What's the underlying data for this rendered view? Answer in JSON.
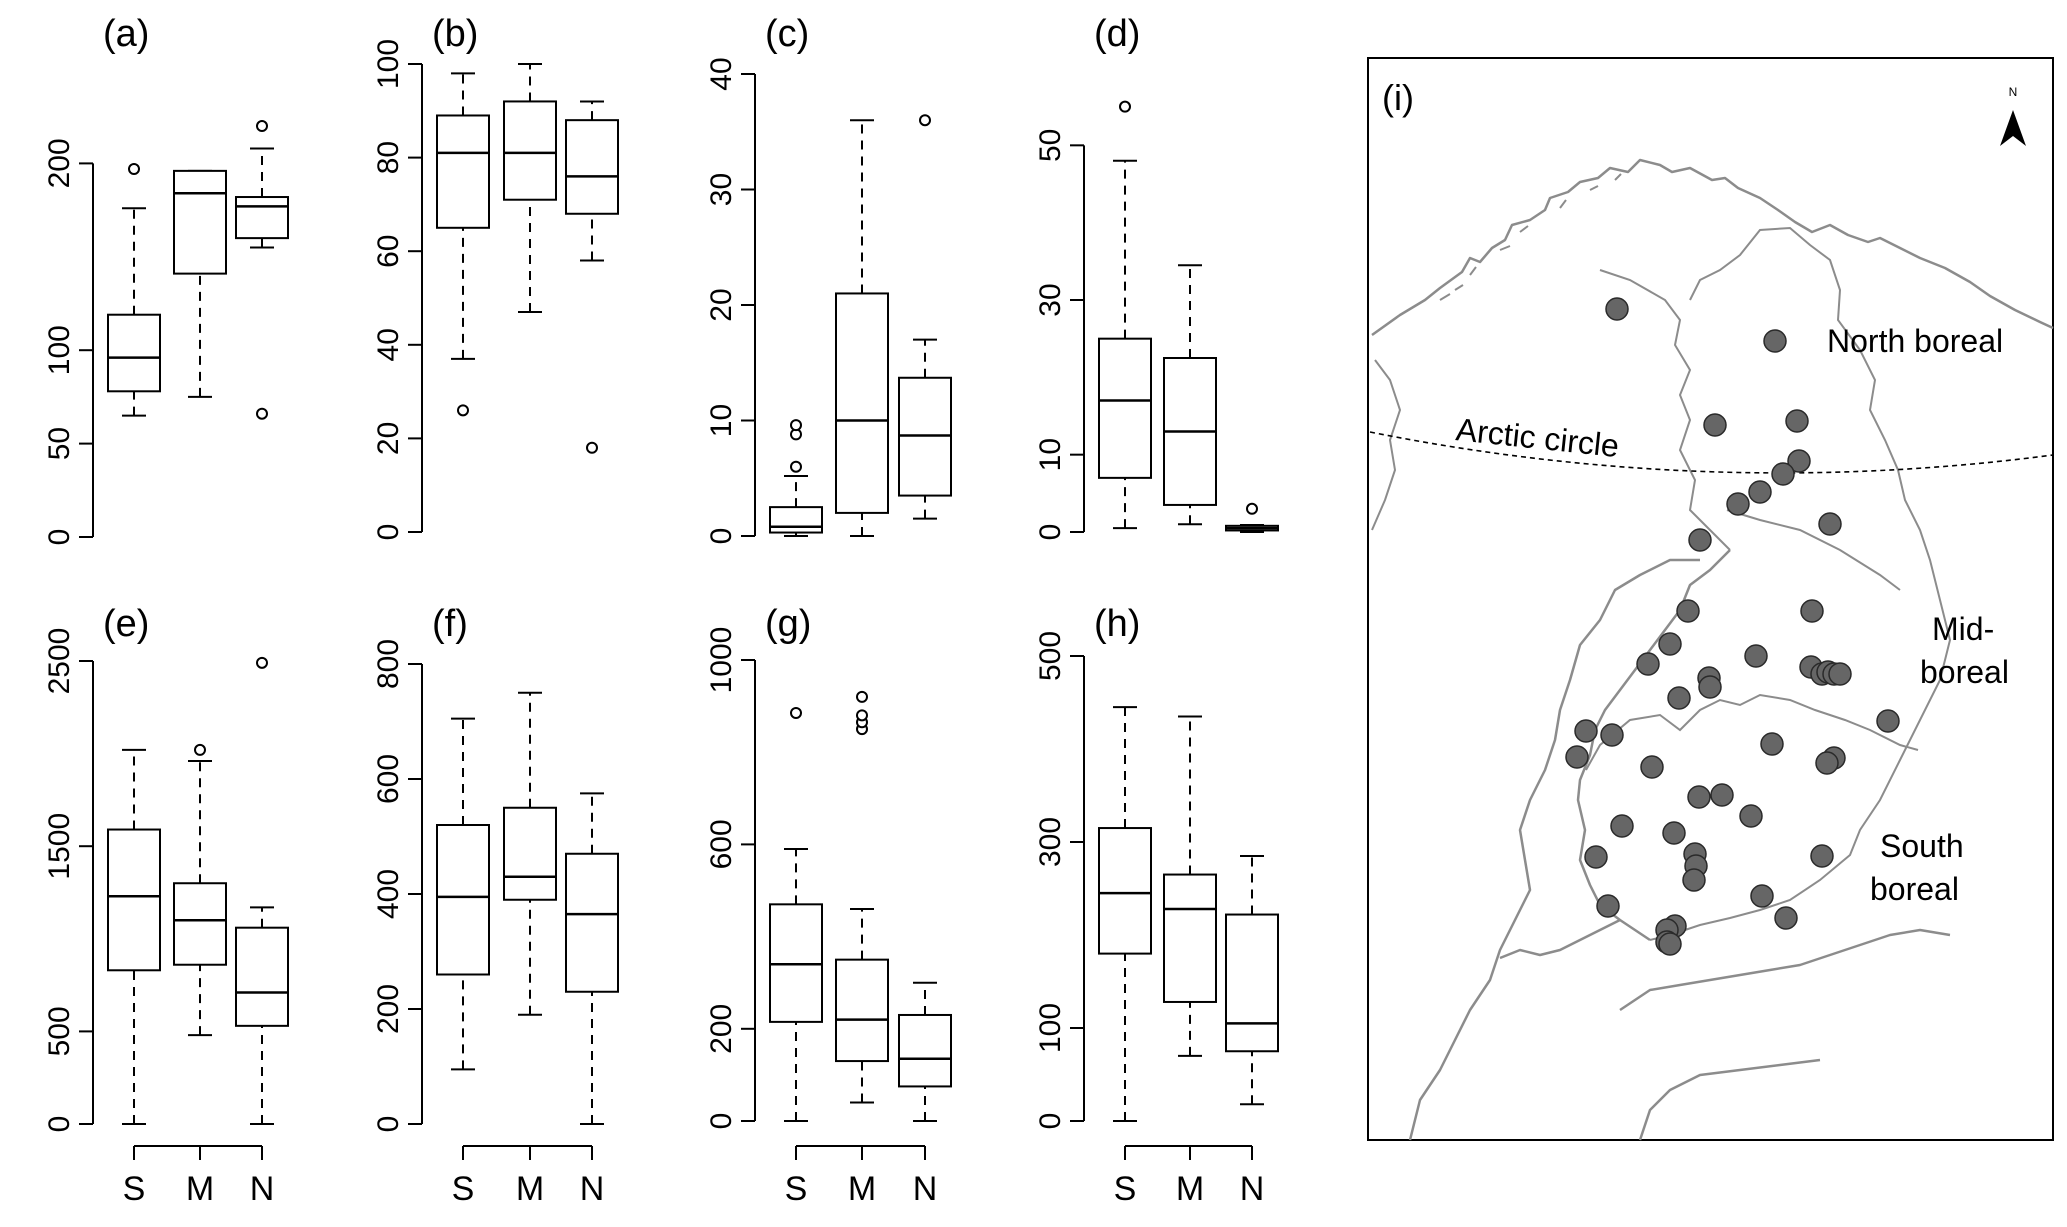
{
  "chart_data": [
    {
      "type": "box",
      "panel_label": "(a)",
      "categories": [
        "S",
        "M",
        "N"
      ],
      "ylim": [
        0,
        250
      ],
      "yticks": [
        0,
        50,
        100,
        200
      ],
      "boxes": [
        {
          "whisker_low": 65,
          "q1": 78,
          "median": 96,
          "q3": 119,
          "whisker_high": 176,
          "outliers": [
            197
          ]
        },
        {
          "whisker_low": 75,
          "q1": 141,
          "median": 184,
          "q3": 196,
          "whisker_high": 196,
          "outliers": []
        },
        {
          "whisker_low": 155,
          "q1": 160,
          "median": 177,
          "q3": 182,
          "whisker_high": 208,
          "outliers": [
            66,
            220
          ]
        }
      ]
    },
    {
      "type": "box",
      "panel_label": "(b)",
      "categories": [
        "S",
        "M",
        "N"
      ],
      "ylim": [
        0,
        100
      ],
      "yticks": [
        0,
        20,
        40,
        60,
        80,
        100
      ],
      "boxes": [
        {
          "whisker_low": 37,
          "q1": 65,
          "median": 81,
          "q3": 89,
          "whisker_high": 98,
          "outliers": [
            26
          ]
        },
        {
          "whisker_low": 47,
          "q1": 71,
          "median": 81,
          "q3": 92,
          "whisker_high": 100,
          "outliers": []
        },
        {
          "whisker_low": 58,
          "q1": 68,
          "median": 76,
          "q3": 88,
          "whisker_high": 92,
          "outliers": [
            18
          ]
        }
      ]
    },
    {
      "type": "box",
      "panel_label": "(c)",
      "categories": [
        "S",
        "M",
        "N"
      ],
      "ylim": [
        0,
        40
      ],
      "yticks": [
        0,
        10,
        20,
        30,
        40
      ],
      "boxes": [
        {
          "whisker_low": 0,
          "q1": 0.3,
          "median": 0.8,
          "q3": 2.5,
          "whisker_high": 5.2,
          "outliers": [
            6,
            8.8,
            9.6
          ]
        },
        {
          "whisker_low": 0,
          "q1": 2,
          "median": 10,
          "q3": 21,
          "whisker_high": 36,
          "outliers": []
        },
        {
          "whisker_low": 1.5,
          "q1": 3.5,
          "median": 8.7,
          "q3": 13.7,
          "whisker_high": 17,
          "outliers": [
            36
          ]
        }
      ]
    },
    {
      "type": "box",
      "panel_label": "(d)",
      "categories": [
        "S",
        "M",
        "N"
      ],
      "ylim": [
        0,
        60
      ],
      "yticks": [
        0,
        10,
        30,
        50
      ],
      "boxes": [
        {
          "whisker_low": 0.5,
          "q1": 7,
          "median": 17,
          "q3": 25,
          "whisker_high": 48,
          "outliers": [
            55
          ]
        },
        {
          "whisker_low": 1,
          "q1": 3.5,
          "median": 13,
          "q3": 22.5,
          "whisker_high": 34.5,
          "outliers": []
        },
        {
          "whisker_low": 0,
          "q1": 0.2,
          "median": 0.5,
          "q3": 0.8,
          "whisker_high": 0.9,
          "outliers": [
            3
          ]
        }
      ]
    },
    {
      "type": "box",
      "panel_label": "(e)",
      "categories": [
        "S",
        "M",
        "N"
      ],
      "ylim": [
        0,
        2500
      ],
      "yticks": [
        0,
        500,
        1500,
        2500
      ],
      "boxes": [
        {
          "whisker_low": 0,
          "q1": 830,
          "median": 1230,
          "q3": 1590,
          "whisker_high": 2020,
          "outliers": []
        },
        {
          "whisker_low": 480,
          "q1": 860,
          "median": 1100,
          "q3": 1300,
          "whisker_high": 1960,
          "outliers": [
            2020
          ]
        },
        {
          "whisker_low": 0,
          "q1": 530,
          "median": 710,
          "q3": 1060,
          "whisker_high": 1170,
          "outliers": [
            2490
          ]
        }
      ]
    },
    {
      "type": "box",
      "panel_label": "(f)",
      "categories": [
        "S",
        "M",
        "N"
      ],
      "ylim": [
        0,
        800
      ],
      "yticks": [
        0,
        200,
        400,
        600,
        800
      ],
      "boxes": [
        {
          "whisker_low": 95,
          "q1": 260,
          "median": 395,
          "q3": 520,
          "whisker_high": 705,
          "outliers": []
        },
        {
          "whisker_low": 190,
          "q1": 390,
          "median": 430,
          "q3": 550,
          "whisker_high": 750,
          "outliers": []
        },
        {
          "whisker_low": 0,
          "q1": 230,
          "median": 365,
          "q3": 470,
          "whisker_high": 575,
          "outliers": []
        }
      ]
    },
    {
      "type": "box",
      "panel_label": "(g)",
      "categories": [
        "S",
        "M",
        "N"
      ],
      "ylim": [
        0,
        1000
      ],
      "yticks": [
        0,
        200,
        600,
        1000
      ],
      "boxes": [
        {
          "whisker_low": 0,
          "q1": 215,
          "median": 340,
          "q3": 470,
          "whisker_high": 590,
          "outliers": [
            885
          ]
        },
        {
          "whisker_low": 40,
          "q1": 130,
          "median": 220,
          "q3": 350,
          "whisker_high": 460,
          "outliers": [
            850,
            865,
            880,
            920
          ]
        },
        {
          "whisker_low": 0,
          "q1": 75,
          "median": 135,
          "q3": 230,
          "whisker_high": 300,
          "outliers": []
        }
      ]
    },
    {
      "type": "box",
      "panel_label": "(h)",
      "categories": [
        "S",
        "M",
        "N"
      ],
      "ylim": [
        0,
        500
      ],
      "yticks": [
        0,
        100,
        300,
        500
      ],
      "boxes": [
        {
          "whisker_low": 0,
          "q1": 180,
          "median": 245,
          "q3": 315,
          "whisker_high": 445,
          "outliers": []
        },
        {
          "whisker_low": 70,
          "q1": 128,
          "median": 228,
          "q3": 265,
          "whisker_high": 435,
          "outliers": []
        },
        {
          "whisker_low": 18,
          "q1": 75,
          "median": 105,
          "q3": 222,
          "whisker_high": 285,
          "outliers": []
        }
      ]
    }
  ],
  "map": {
    "panel_label": "(i)",
    "north_symbol": "N",
    "labels": {
      "north_boreal": "North boreal",
      "mid_boreal_1": "Mid-",
      "mid_boreal_2": "boreal",
      "south_boreal_1": "South",
      "south_boreal_2": "boreal",
      "arctic_circle": "Arctic circle"
    },
    "site_color": "#666666",
    "line_color": "#8c8c8c"
  }
}
